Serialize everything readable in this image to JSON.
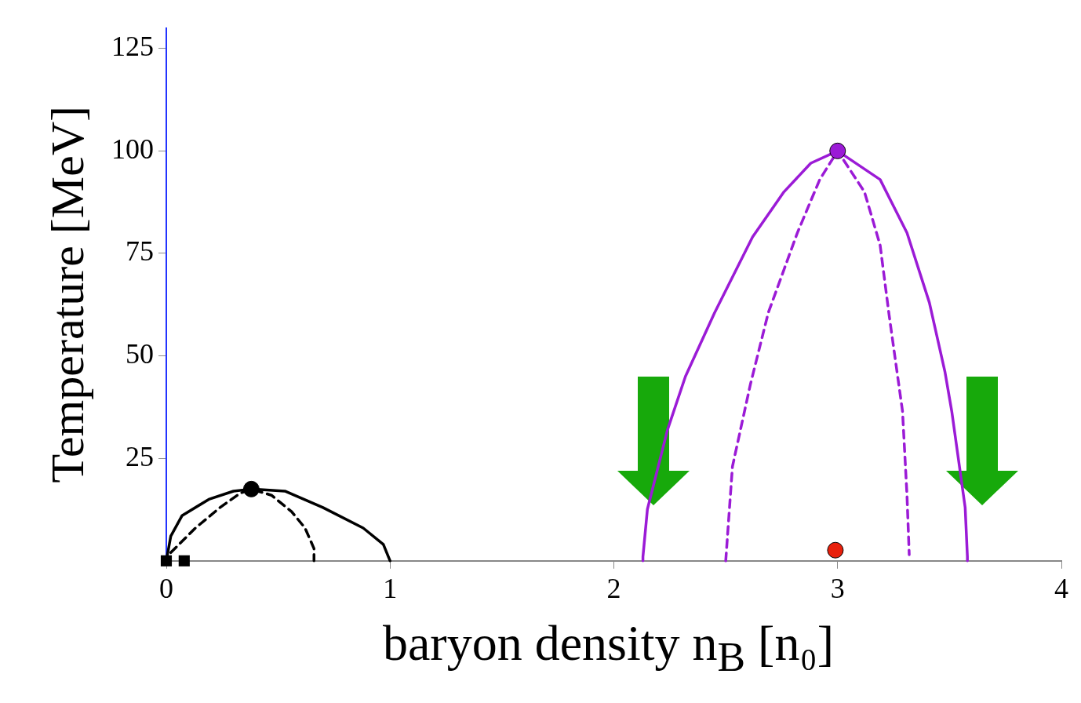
{
  "chart_data": {
    "type": "line",
    "xlabel": "baryon density n$_{B}$ [n₀]",
    "ylabel": "Temperature [MeV]",
    "xlim": [
      0,
      4
    ],
    "xticks": [
      0,
      1,
      2,
      3,
      4
    ],
    "ylim": [
      0,
      130
    ],
    "yticks": [
      25,
      50,
      75,
      100,
      125
    ],
    "grid": false,
    "legend": false,
    "series": [
      {
        "type": "line",
        "color": "#000000",
        "line_style": "solid",
        "marker": "none",
        "x": [
          0,
          0.02,
          0.07,
          0.19,
          0.3,
          0.38,
          0.53,
          0.7,
          0.88,
          0.97,
          1.0
        ],
        "values": [
          0,
          6,
          11,
          15,
          17,
          17.5,
          17,
          13,
          8,
          4,
          0
        ]
      },
      {
        "type": "line",
        "color": "#000000",
        "line_style": "dashed",
        "marker": "none",
        "x": [
          0.02,
          0.13,
          0.24,
          0.33,
          0.38,
          0.47,
          0.56,
          0.62,
          0.66,
          0.66
        ],
        "values": [
          2,
          8,
          13,
          16.5,
          17.5,
          16,
          12,
          8,
          3,
          0
        ]
      },
      {
        "type": "line",
        "color": "#9b1bd6",
        "line_style": "solid",
        "marker": "none",
        "x": [
          2.13,
          2.13,
          2.15,
          2.24,
          2.32,
          2.45,
          2.62,
          2.76,
          2.88,
          3.0,
          3.19,
          3.31,
          3.41,
          3.48,
          3.51,
          3.57,
          3.58,
          3.58
        ],
        "values": [
          0,
          1,
          12.6,
          32,
          45,
          60.5,
          79,
          90,
          97,
          100,
          93,
          80,
          63,
          46,
          36.5,
          13,
          1,
          0
        ]
      },
      {
        "type": "line",
        "color": "#9b1bd6",
        "line_style": "dashed",
        "marker": "none",
        "x": [
          2.5,
          2.53,
          2.61,
          2.69,
          2.82,
          2.92,
          3.0,
          3.12,
          3.19,
          3.23,
          3.29,
          3.31,
          3.32
        ],
        "values": [
          0,
          23,
          43,
          60.5,
          80,
          93,
          100,
          90,
          77,
          60,
          36.5,
          16,
          1.5
        ]
      },
      {
        "type": "scatter",
        "color": "#000000",
        "marker": "circle",
        "x": [
          0.38
        ],
        "values": [
          17.5
        ]
      },
      {
        "type": "scatter",
        "color": "#9b1bd6",
        "marker": "circle",
        "x": [
          3.0
        ],
        "values": [
          100
        ]
      },
      {
        "type": "scatter",
        "color": "#e8200c",
        "marker": "circle",
        "x": [
          2.99
        ],
        "values": [
          2.6
        ]
      },
      {
        "type": "scatter",
        "color": "#000000",
        "marker": "square",
        "x": [
          0,
          0.08
        ],
        "values": [
          0,
          0
        ]
      }
    ]
  }
}
